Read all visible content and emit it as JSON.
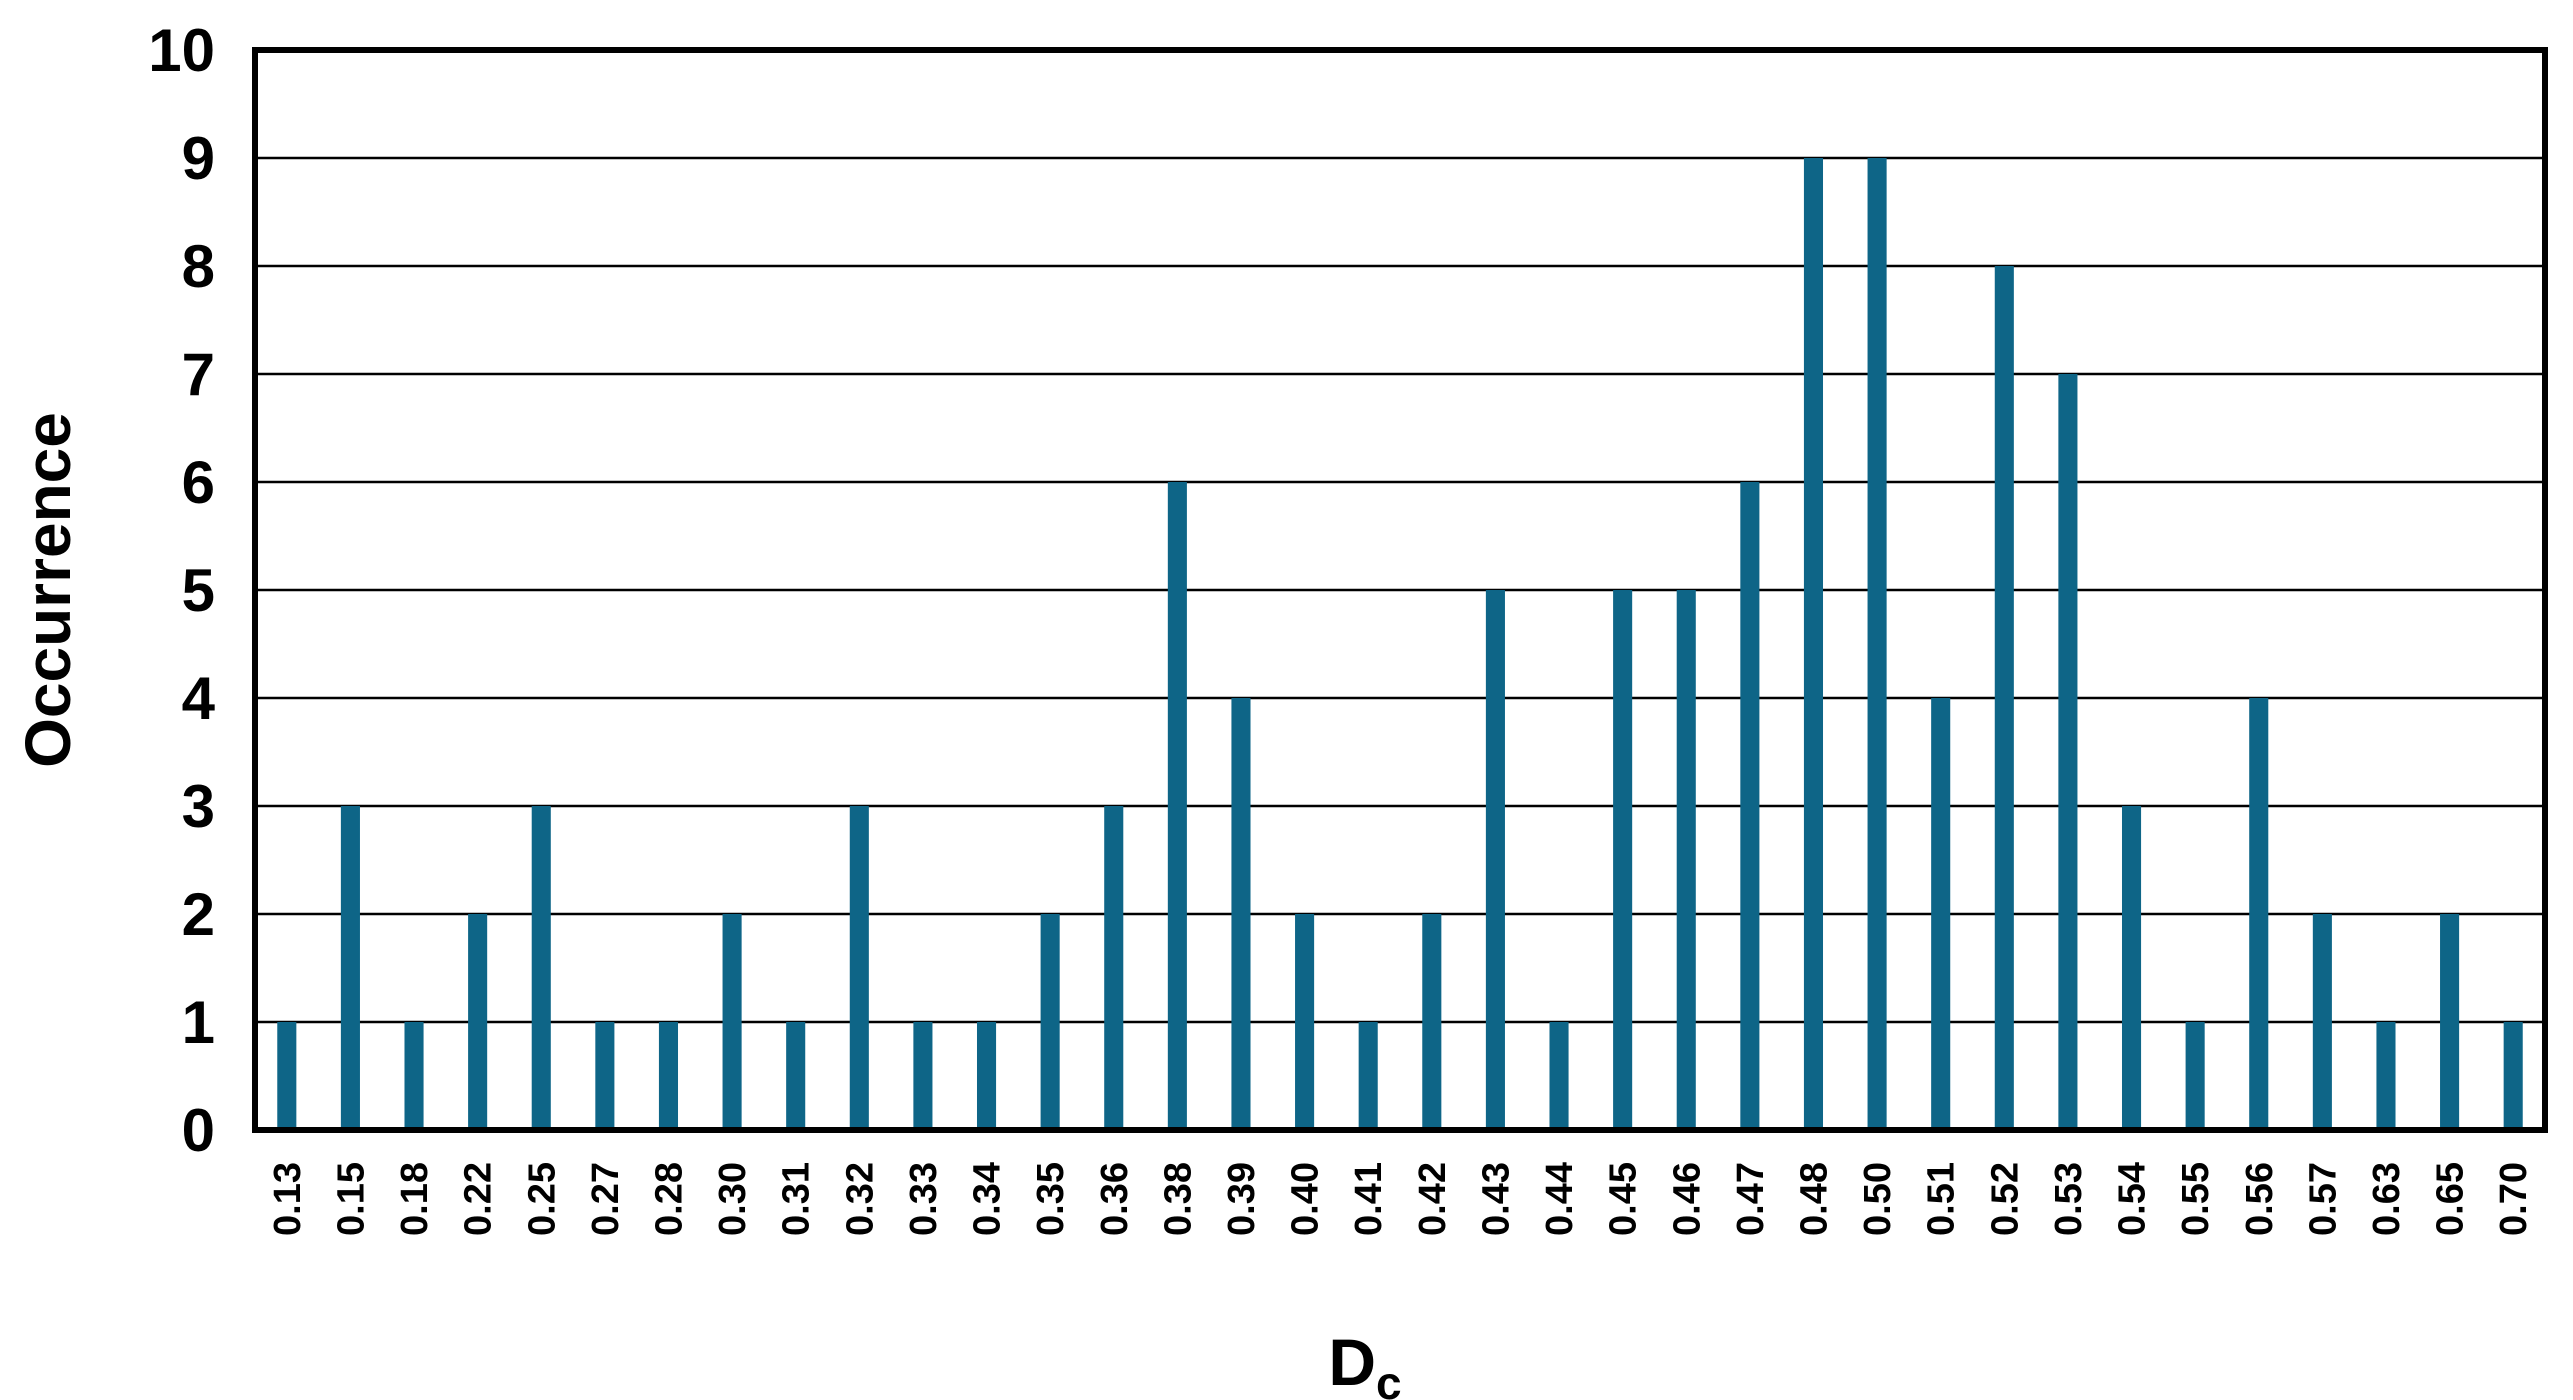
{
  "chart_data": {
    "type": "bar",
    "title": "",
    "xlabel": "D",
    "xlabel_subscript": "c",
    "ylabel": "Occurrence",
    "ylim": [
      0,
      10
    ],
    "yticks": [
      "0",
      "1",
      "2",
      "3",
      "4",
      "5",
      "6",
      "7",
      "8",
      "9",
      "10"
    ],
    "grid": "horizontal",
    "legend": "none",
    "bar_color": "#0E6587",
    "categories": [
      "0.13",
      "0.15",
      "0.18",
      "0.22",
      "0.25",
      "0.27",
      "0.28",
      "0.30",
      "0.31",
      "0.32",
      "0.33",
      "0.34",
      "0.35",
      "0.36",
      "0.38",
      "0.39",
      "0.40",
      "0.41",
      "0.42",
      "0.43",
      "0.44",
      "0.45",
      "0.46",
      "0.47",
      "0.48",
      "0.50",
      "0.51",
      "0.52",
      "0.53",
      "0.54",
      "0.55",
      "0.56",
      "0.57",
      "0.63",
      "0.65",
      "0.70"
    ],
    "values": [
      1,
      3,
      1,
      2,
      3,
      1,
      1,
      2,
      1,
      3,
      1,
      1,
      2,
      3,
      6,
      4,
      2,
      1,
      2,
      5,
      1,
      5,
      5,
      6,
      9,
      9,
      4,
      8,
      7,
      3,
      1,
      4,
      2,
      1,
      2,
      1
    ]
  }
}
